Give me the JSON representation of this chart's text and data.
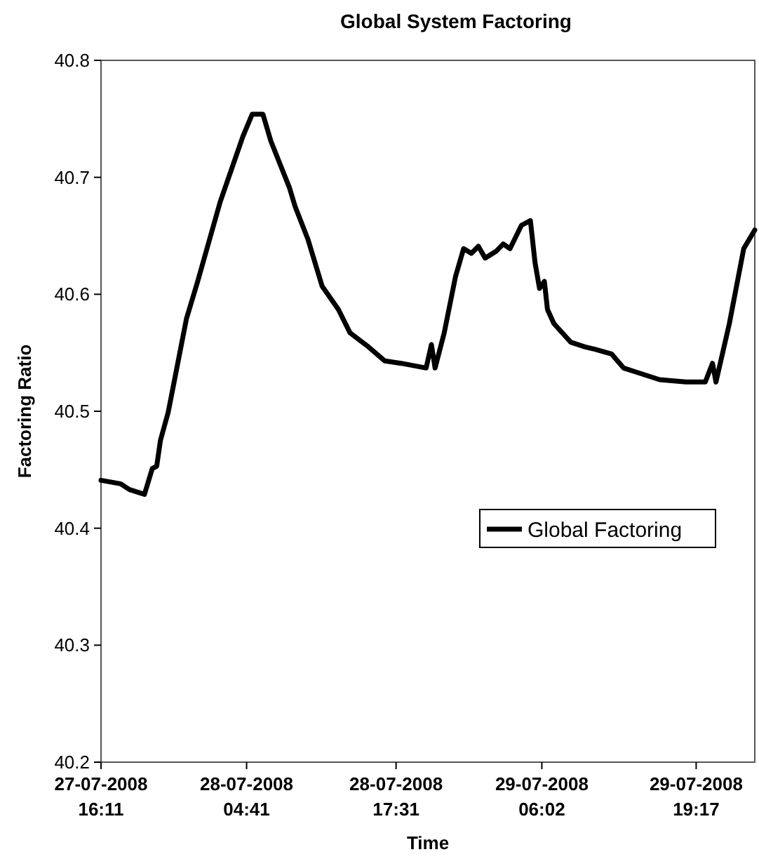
{
  "chart_data": {
    "type": "line",
    "title": "Global System Factoring",
    "xlabel": "Time",
    "ylabel": "Factoring Ratio",
    "x": [
      "2008-07-27T16:11",
      "2008-07-27T17:52",
      "2008-07-27T18:38",
      "2008-07-27T19:55",
      "2008-07-27T20:35",
      "2008-07-27T20:58",
      "2008-07-27T21:17",
      "2008-07-27T21:57",
      "2008-07-27T23:31",
      "2008-07-28T00:29",
      "2008-07-28T02:25",
      "2008-07-28T04:22",
      "2008-07-28T05:10",
      "2008-07-28T06:05",
      "2008-07-28T06:46",
      "2008-07-28T08:22",
      "2008-07-28T08:51",
      "2008-07-28T09:57",
      "2008-07-28T11:10",
      "2008-07-28T12:34",
      "2008-07-28T13:34",
      "2008-07-28T15:09",
      "2008-07-28T16:33",
      "2008-07-28T17:57",
      "2008-07-28T20:06",
      "2008-07-28T20:33",
      "2008-07-28T20:52",
      "2008-07-28T21:39",
      "2008-07-28T22:37",
      "2008-07-28T23:19",
      "2008-07-28T23:59",
      "2008-07-29T00:35",
      "2008-07-29T01:10",
      "2008-07-29T02:08",
      "2008-07-29T02:43",
      "2008-07-29T03:18",
      "2008-07-29T04:17",
      "2008-07-29T05:03",
      "2008-07-29T05:27",
      "2008-07-29T05:50",
      "2008-07-29T06:15",
      "2008-07-29T06:31",
      "2008-07-29T07:04",
      "2008-07-29T08:31",
      "2008-07-29T09:45",
      "2008-07-29T10:35",
      "2008-07-29T12:01",
      "2008-07-29T13:03",
      "2008-07-29T14:17",
      "2008-07-29T16:09",
      "2008-07-29T18:25",
      "2008-07-29T20:04",
      "2008-07-29T20:41",
      "2008-07-29T20:59",
      "2008-07-29T22:08",
      "2008-07-29T23:22",
      "2008-07-30T00:19"
    ],
    "series": [
      {
        "name": "Global Factoring",
        "color": "#000000",
        "values": [
          40.441,
          40.438,
          40.433,
          40.429,
          40.451,
          40.453,
          40.475,
          40.499,
          40.579,
          40.611,
          40.679,
          40.735,
          40.754,
          40.754,
          40.731,
          40.691,
          40.675,
          40.647,
          40.607,
          40.587,
          40.567,
          40.555,
          40.543,
          40.541,
          40.537,
          40.557,
          40.537,
          40.567,
          40.615,
          40.639,
          40.635,
          40.641,
          40.631,
          40.637,
          40.643,
          40.639,
          40.659,
          40.663,
          40.627,
          40.605,
          40.611,
          40.587,
          40.575,
          40.559,
          40.555,
          40.553,
          40.549,
          40.537,
          40.533,
          40.527,
          40.525,
          40.525,
          40.541,
          40.525,
          40.575,
          40.639,
          40.655
        ]
      }
    ],
    "xlim": [
      "2008-07-27T16:11",
      "2008-07-30T00:19"
    ],
    "xticks": [
      {
        "value": "2008-07-27T16:11",
        "label": "27-07-2008 16:11"
      },
      {
        "value": "2008-07-28T04:41",
        "label": "28-07-2008 04:41"
      },
      {
        "value": "2008-07-28T17:31",
        "label": "28-07-2008 17:31"
      },
      {
        "value": "2008-07-29T06:02",
        "label": "29-07-2008 06:02"
      },
      {
        "value": "2008-07-29T19:17",
        "label": "29-07-2008 19:17"
      }
    ],
    "ylim": [
      40.2,
      40.8
    ],
    "yticks": [
      40.2,
      40.3,
      40.4,
      40.5,
      40.6,
      40.7,
      40.8
    ],
    "legend": "right",
    "marker": "none",
    "line_style": "solid"
  }
}
